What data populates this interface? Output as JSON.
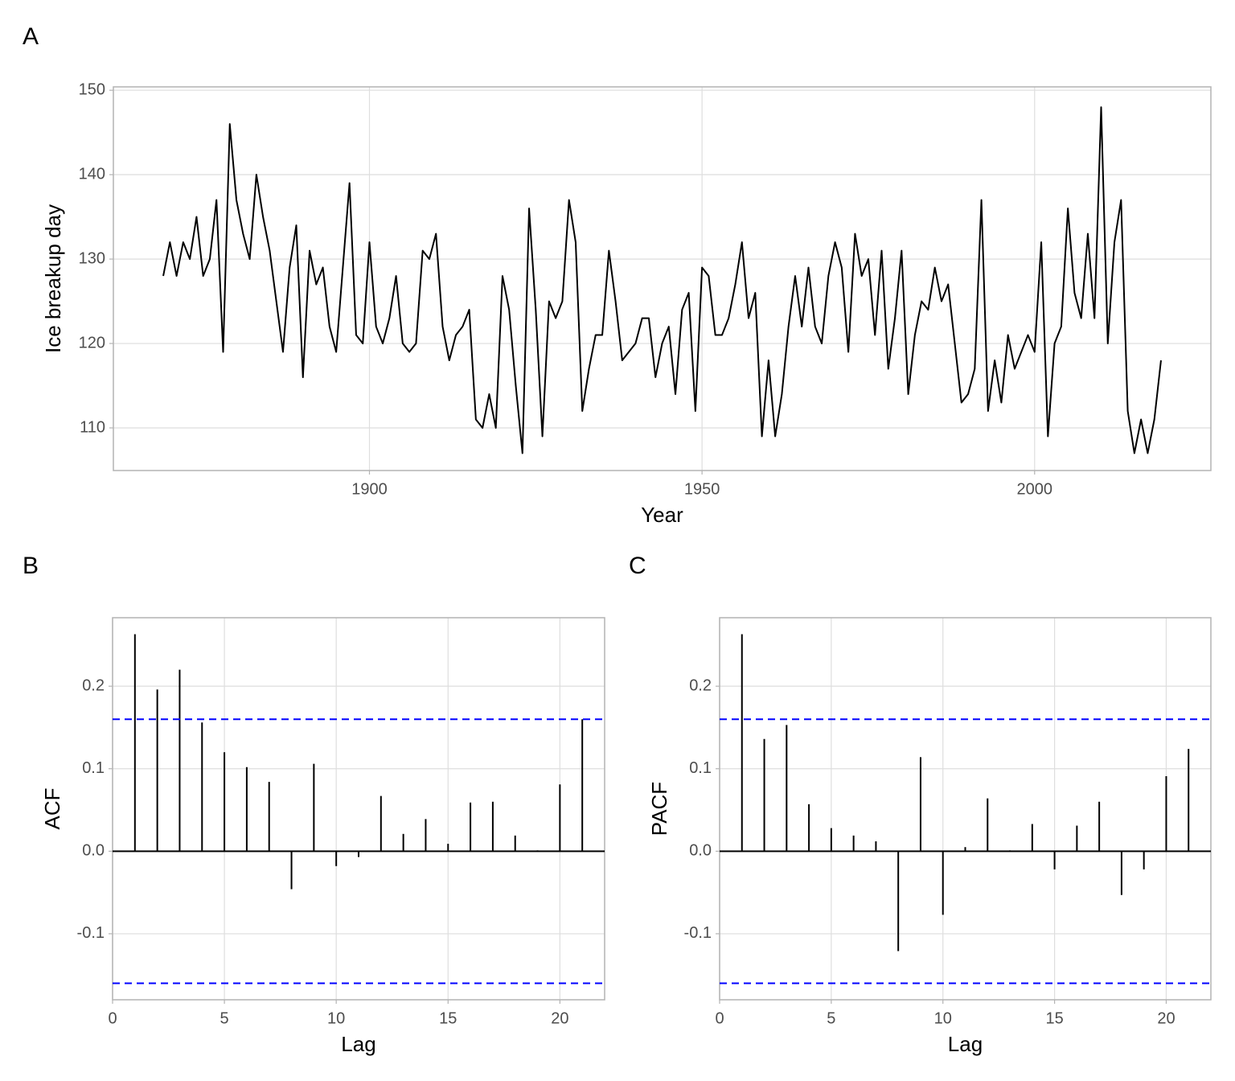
{
  "chart_data": [
    {
      "type": "line",
      "tag": "A",
      "xlabel": "Year",
      "ylabel": "Ice breakup day",
      "color": "#000000",
      "grid": true,
      "xlim": [
        1861.5,
        2026.5
      ],
      "ylim": [
        104.95,
        150.4
      ],
      "xticks": [
        1900,
        1950,
        2000
      ],
      "yticks": [
        110,
        120,
        130,
        140,
        150
      ],
      "x": [
        1869,
        1870,
        1871,
        1872,
        1873,
        1874,
        1875,
        1876,
        1877,
        1878,
        1879,
        1880,
        1881,
        1882,
        1883,
        1884,
        1885,
        1886,
        1887,
        1888,
        1889,
        1890,
        1891,
        1892,
        1893,
        1894,
        1895,
        1896,
        1897,
        1898,
        1899,
        1900,
        1901,
        1902,
        1903,
        1904,
        1905,
        1906,
        1907,
        1908,
        1909,
        1910,
        1911,
        1912,
        1913,
        1914,
        1915,
        1916,
        1917,
        1918,
        1919,
        1920,
        1921,
        1922,
        1923,
        1924,
        1925,
        1926,
        1927,
        1928,
        1929,
        1930,
        1931,
        1932,
        1933,
        1934,
        1935,
        1936,
        1937,
        1938,
        1939,
        1940,
        1941,
        1942,
        1943,
        1944,
        1945,
        1946,
        1947,
        1948,
        1949,
        1950,
        1951,
        1952,
        1953,
        1954,
        1955,
        1956,
        1957,
        1958,
        1959,
        1960,
        1961,
        1962,
        1963,
        1964,
        1965,
        1966,
        1967,
        1968,
        1969,
        1970,
        1971,
        1972,
        1973,
        1974,
        1975,
        1976,
        1977,
        1978,
        1979,
        1980,
        1981,
        1982,
        1983,
        1984,
        1985,
        1986,
        1987,
        1988,
        1989,
        1990,
        1991,
        1992,
        1993,
        1994,
        1995,
        1996,
        1997,
        1998,
        1999,
        2000,
        2001,
        2002,
        2003,
        2004,
        2005,
        2006,
        2007,
        2008,
        2009,
        2010,
        2011,
        2012,
        2013,
        2014,
        2015,
        2016,
        2017,
        2018,
        2019
      ],
      "values": [
        128,
        132,
        128,
        132,
        130,
        135,
        128,
        130,
        137,
        119,
        146,
        137,
        133,
        130,
        140,
        135,
        131,
        125,
        119,
        129,
        134,
        116,
        131,
        127,
        129,
        122,
        119,
        129,
        139,
        121,
        120,
        132,
        122,
        120,
        123,
        128,
        120,
        119,
        120,
        131,
        130,
        133,
        122,
        118,
        121,
        122,
        124,
        111,
        110,
        114,
        110,
        128,
        124,
        115,
        107,
        136,
        124,
        109,
        125,
        123,
        125,
        137,
        132,
        112,
        117,
        121,
        121,
        131,
        125,
        118,
        119,
        120,
        123,
        123,
        116,
        120,
        122,
        114,
        124,
        126,
        112,
        129,
        128,
        121,
        121,
        123,
        127,
        132,
        123,
        126,
        109,
        118,
        109,
        114,
        122,
        128,
        122,
        129,
        122,
        120,
        128,
        132,
        129,
        119,
        133,
        128,
        130,
        121,
        131,
        117,
        123,
        131,
        114,
        121,
        125,
        124,
        129,
        125,
        127,
        120,
        113,
        114,
        117,
        137,
        112,
        118,
        113,
        121,
        117,
        119,
        121,
        119,
        132,
        109,
        120,
        122,
        136,
        126,
        123,
        133,
        123,
        148,
        120,
        132,
        137,
        112,
        107,
        111,
        107,
        111,
        118
      ]
    },
    {
      "type": "bar",
      "tag": "B",
      "xlabel": "Lag",
      "ylabel": "ACF",
      "color": "#000000",
      "grid": true,
      "ci": [
        0.16,
        -0.16
      ],
      "ci_color": "#0000ff",
      "xlim": [
        0,
        22
      ],
      "ylim": [
        -0.18,
        0.283
      ],
      "xticks": [
        0,
        5,
        10,
        15,
        20
      ],
      "yticks": [
        -0.1,
        {
          "value": 0,
          "label": "0.0"
        },
        0.1,
        0.2
      ],
      "x": [
        1,
        2,
        3,
        4,
        5,
        6,
        7,
        8,
        9,
        10,
        11,
        12,
        13,
        14,
        15,
        16,
        17,
        18,
        19,
        20,
        21
      ],
      "values": [
        0.263,
        0.196,
        0.22,
        0.156,
        0.12,
        0.102,
        0.084,
        -0.046,
        0.106,
        -0.018,
        -0.007,
        0.067,
        0.021,
        0.039,
        0.009,
        0.059,
        0.06,
        0.019,
        0.001,
        0.081,
        0.16
      ]
    },
    {
      "type": "bar",
      "tag": "C",
      "xlabel": "Lag",
      "ylabel": "PACF",
      "color": "#000000",
      "grid": true,
      "ci": [
        0.16,
        -0.16
      ],
      "ci_color": "#0000ff",
      "xlim": [
        0,
        22
      ],
      "ylim": [
        -0.18,
        0.283
      ],
      "xticks": [
        0,
        5,
        10,
        15,
        20
      ],
      "yticks": [
        -0.1,
        {
          "value": 0,
          "label": "0.0"
        },
        0.1,
        0.2
      ],
      "x": [
        1,
        2,
        3,
        4,
        5,
        6,
        7,
        8,
        9,
        10,
        11,
        12,
        13,
        14,
        15,
        16,
        17,
        18,
        19,
        20,
        21
      ],
      "values": [
        0.263,
        0.136,
        0.153,
        0.057,
        0.028,
        0.019,
        0.012,
        -0.121,
        0.114,
        -0.077,
        0.005,
        0.064,
        0.001,
        0.033,
        -0.022,
        0.031,
        0.06,
        -0.053,
        -0.022,
        0.091,
        0.124
      ]
    }
  ]
}
